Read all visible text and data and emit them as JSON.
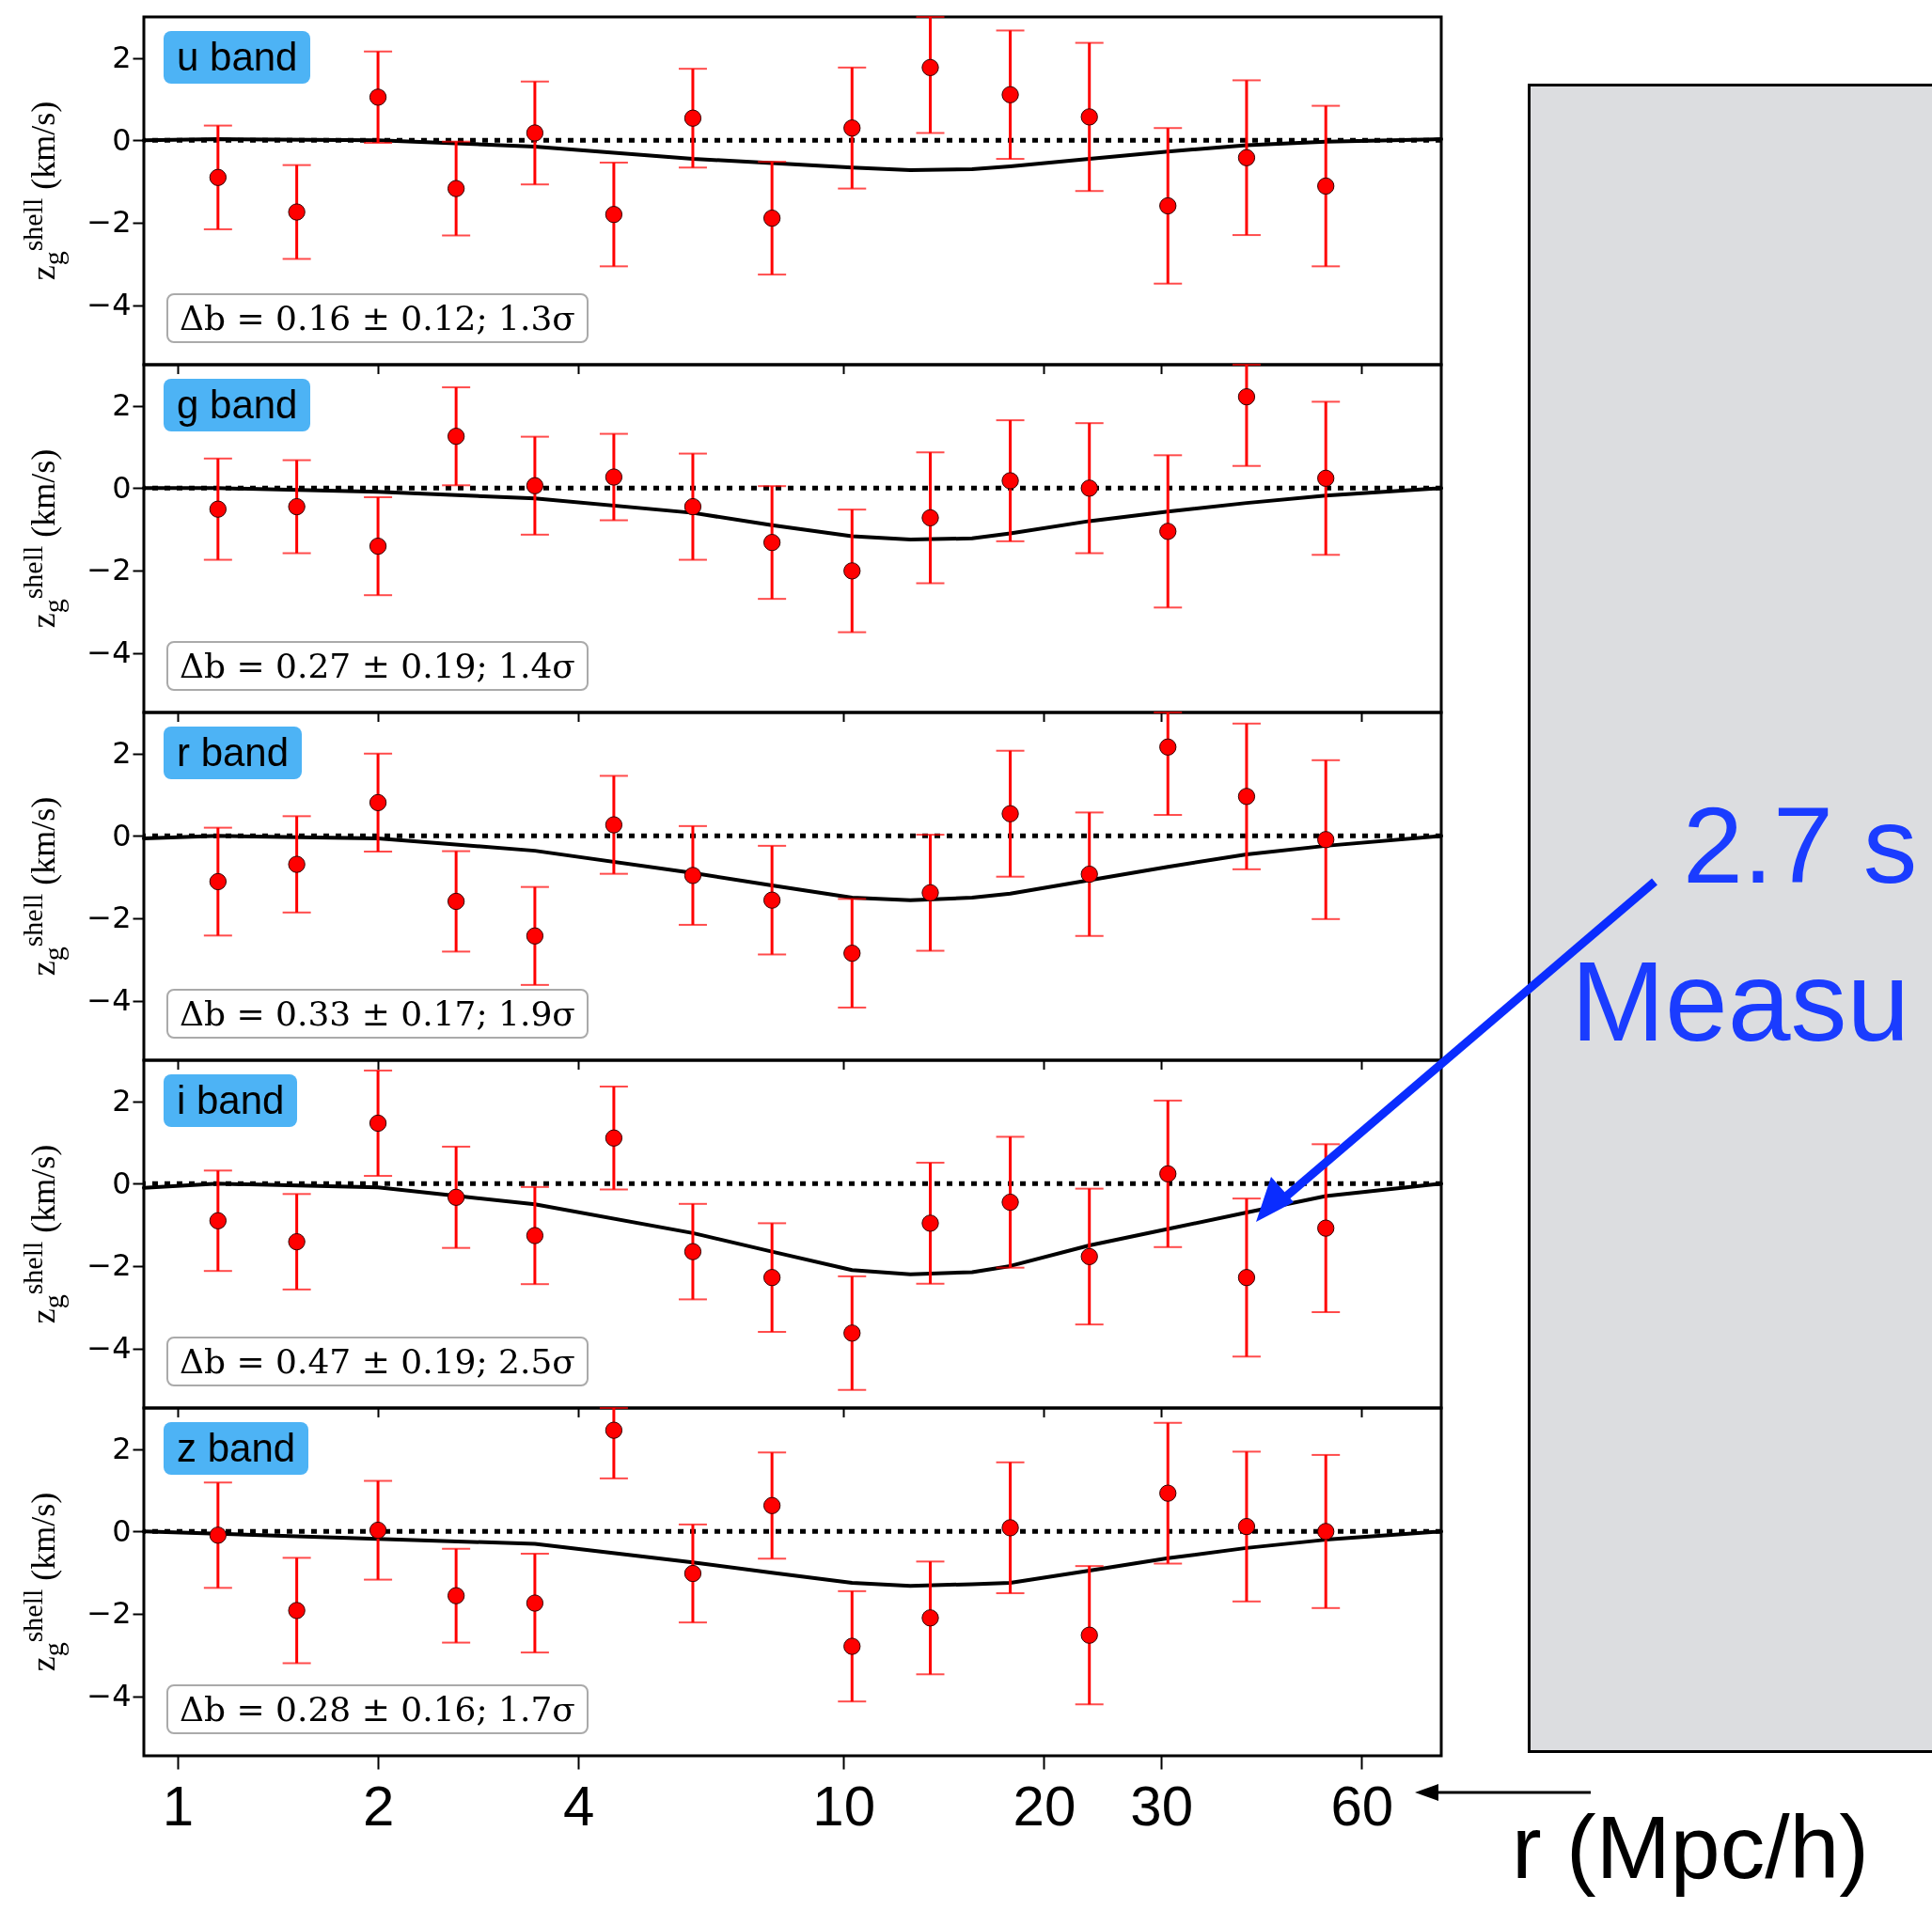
{
  "chart_data": [
    {
      "type": "scatter",
      "title": "u band",
      "ylabel": "z$_{g}$$^{shell}$ (km/s)",
      "annotations": [
        "Δb = 0.16 ± 0.12; 1.3σ"
      ],
      "log": "x",
      "xlim": [
        0.89,
        79
      ],
      "ylim": [
        -5.45,
        3
      ],
      "xticks": [
        1,
        2,
        4,
        10,
        20,
        30,
        60
      ],
      "yticks": [
        -4,
        -2,
        0,
        2
      ],
      "tick_labels": "y",
      "x": [
        1.15,
        1.51,
        2.0,
        2.62,
        3.44,
        4.52,
        5.94,
        7.81,
        10.3,
        13.5,
        17.8,
        23.4,
        30.7,
        40.3,
        53.0
      ],
      "ref_lines": [
        {
          "axis": "y",
          "value": 0,
          "color": "#000000",
          "line_style": "dotted"
        }
      ],
      "series": [
        {
          "color": "#ff0000",
          "marker": "circle",
          "values": [
            -0.9,
            -1.74,
            1.05,
            -1.17,
            0.18,
            -1.8,
            0.54,
            -1.89,
            0.3,
            1.77,
            1.11,
            0.57,
            -1.59,
            -0.42,
            -1.11
          ],
          "errors": [
            1.26,
            1.14,
            1.11,
            1.14,
            1.25,
            1.26,
            1.2,
            1.37,
            1.47,
            [
              0.18,
              3
            ],
            1.56,
            1.8,
            1.89,
            1.88,
            1.95
          ]
        },
        {
          "type": "line",
          "color": "#000000",
          "line_style": "solid",
          "x": [
            0.89,
            1.15,
            2.0,
            3.44,
            5.94,
            7.81,
            10.3,
            12.6,
            15.6,
            17.8,
            23.4,
            30.7,
            40.3,
            53.0,
            79
          ],
          "values": [
            0,
            0.03,
            0,
            -0.15,
            -0.45,
            -0.55,
            -0.66,
            -0.72,
            -0.7,
            -0.63,
            -0.45,
            -0.27,
            -0.12,
            -0.03,
            0.03
          ]
        }
      ]
    },
    {
      "type": "scatter",
      "title": "g band",
      "ylabel": "z$_{g}$$^{shell}$ (km/s)",
      "annotations": [
        "Δb = 0.27 ± 0.19; 1.4σ"
      ],
      "log": "x",
      "xlim": [
        0.89,
        79
      ],
      "ylim": [
        -5.45,
        3
      ],
      "xticks": [
        1,
        2,
        4,
        10,
        20,
        30,
        60
      ],
      "yticks": [
        -4,
        -2,
        0,
        2
      ],
      "tick_labels": "y",
      "x": [
        1.15,
        1.51,
        2.0,
        2.62,
        3.44,
        4.52,
        5.94,
        7.81,
        10.3,
        13.5,
        17.8,
        23.4,
        30.7,
        40.3,
        53.0
      ],
      "ref_lines": [
        {
          "axis": "y",
          "value": 0,
          "color": "#000000",
          "line_style": "dotted"
        }
      ],
      "series": [
        {
          "color": "#ff0000",
          "marker": "circle",
          "values": [
            -0.51,
            -0.45,
            -1.41,
            1.26,
            0.06,
            0.27,
            -0.45,
            -1.32,
            -2.01,
            -0.72,
            0.18,
            0,
            -1.05,
            2.22,
            0.24
          ],
          "errors": [
            1.23,
            1.13,
            1.19,
            1.19,
            1.19,
            1.05,
            1.29,
            1.37,
            1.49,
            1.59,
            1.47,
            1.58,
            1.85,
            [
              0.54,
              3
            ],
            1.86
          ]
        },
        {
          "type": "line",
          "color": "#000000",
          "line_style": "solid",
          "x": [
            0.89,
            1.15,
            2.0,
            3.44,
            5.94,
            7.81,
            10.3,
            12.6,
            15.6,
            17.8,
            23.4,
            30.7,
            40.3,
            53.0,
            79
          ],
          "values": [
            0,
            0,
            -0.09,
            -0.25,
            -0.6,
            -0.9,
            -1.17,
            -1.25,
            -1.22,
            -1.1,
            -0.8,
            -0.57,
            -0.36,
            -0.18,
            0
          ]
        }
      ]
    },
    {
      "type": "scatter",
      "title": "r band",
      "ylabel": "z$_{g}$$^{shell}$ (km/s)",
      "annotations": [
        "Δb = 0.33 ± 0.17; 1.9σ"
      ],
      "log": "x",
      "xlim": [
        0.89,
        79
      ],
      "ylim": [
        -5.45,
        3
      ],
      "xticks": [
        1,
        2,
        4,
        10,
        20,
        30,
        60
      ],
      "yticks": [
        -4,
        -2,
        0,
        2
      ],
      "tick_labels": "y",
      "x": [
        1.15,
        1.51,
        2.0,
        2.62,
        3.44,
        4.52,
        5.94,
        7.81,
        10.3,
        13.5,
        17.8,
        23.4,
        30.7,
        40.3,
        53.0
      ],
      "ref_lines": [
        {
          "axis": "y",
          "value": 0,
          "color": "#000000",
          "line_style": "dotted"
        }
      ],
      "series": [
        {
          "color": "#ff0000",
          "marker": "circle",
          "values": [
            -1.11,
            -0.69,
            0.81,
            -1.59,
            -2.43,
            0.27,
            -0.96,
            -1.56,
            -2.85,
            -1.38,
            0.54,
            -0.93,
            2.16,
            0.96,
            -0.09
          ],
          "errors": [
            1.31,
            1.17,
            1.19,
            1.22,
            1.19,
            1.19,
            1.2,
            1.32,
            1.32,
            1.41,
            1.53,
            1.5,
            [
              0.51,
              3
            ],
            1.77,
            1.93
          ]
        },
        {
          "type": "line",
          "color": "#000000",
          "line_style": "solid",
          "x": [
            0.89,
            1.15,
            2.0,
            3.44,
            5.94,
            7.81,
            10.3,
            12.6,
            15.6,
            17.8,
            30.7,
            40.3,
            53.0,
            79
          ],
          "values": [
            -0.06,
            0,
            -0.06,
            -0.36,
            -0.9,
            -1.2,
            -1.5,
            -1.56,
            -1.5,
            -1.4,
            -0.75,
            -0.45,
            -0.24,
            0
          ]
        }
      ]
    },
    {
      "type": "scatter",
      "title": "i band",
      "ylabel": "z$_{g}$$^{shell}$ (km/s)",
      "annotations": [
        "Δb = 0.47 ± 0.19; 2.5σ",
        "2.7 s",
        "Measu"
      ],
      "log": "x",
      "xlim": [
        0.89,
        79
      ],
      "ylim": [
        -5.45,
        3
      ],
      "xticks": [
        1,
        2,
        4,
        10,
        20,
        30,
        60
      ],
      "yticks": [
        -4,
        -2,
        0,
        2
      ],
      "tick_labels": "y",
      "x": [
        1.15,
        1.51,
        2.0,
        2.62,
        3.44,
        4.52,
        5.94,
        7.81,
        10.3,
        13.5,
        17.8,
        23.4,
        30.7,
        40.3,
        53.0
      ],
      "ref_lines": [
        {
          "axis": "y",
          "value": 0,
          "color": "#000000",
          "line_style": "dotted"
        }
      ],
      "series": [
        {
          "color": "#ff0000",
          "marker": "circle",
          "values": [
            -0.9,
            -1.41,
            1.47,
            -0.33,
            -1.26,
            1.11,
            -1.65,
            -2.28,
            -3.63,
            -0.96,
            -0.45,
            -1.77,
            0.24,
            -2.28,
            -1.08
          ],
          "errors": [
            1.22,
            1.16,
            1.28,
            1.23,
            1.18,
            1.25,
            1.16,
            1.32,
            1.38,
            1.47,
            1.59,
            1.65,
            1.78,
            1.92,
            2.04
          ]
        },
        {
          "type": "line",
          "color": "#000000",
          "line_style": "solid",
          "x": [
            0.89,
            1.15,
            2.0,
            3.44,
            5.94,
            7.81,
            10.3,
            12.6,
            15.6,
            17.8,
            23.4,
            30.7,
            40.3,
            53.0,
            79
          ],
          "values": [
            -0.1,
            0,
            -0.09,
            -0.5,
            -1.2,
            -1.65,
            -2.1,
            -2.2,
            -2.15,
            -2.0,
            -1.5,
            -1.1,
            -0.7,
            -0.3,
            0
          ]
        }
      ]
    },
    {
      "type": "scatter",
      "title": "z band",
      "ylabel": "z$_{g}$$^{shell}$ (km/s)",
      "xlabel": "r (Mpc/h)",
      "annotations": [
        "Δb = 0.28 ± 0.16; 1.7σ"
      ],
      "log": "x",
      "xlim": [
        0.89,
        79
      ],
      "ylim": [
        -5.45,
        3
      ],
      "xticks": [
        1,
        2,
        4,
        10,
        20,
        30,
        60
      ],
      "yticks": [
        -4,
        -2,
        0,
        2
      ],
      "x": [
        1.15,
        1.51,
        2.0,
        2.62,
        3.44,
        4.52,
        5.94,
        7.81,
        10.3,
        13.5,
        17.8,
        23.4,
        30.7,
        40.3,
        53.0
      ],
      "ref_lines": [
        {
          "axis": "y",
          "value": 0,
          "color": "#000000",
          "line_style": "dotted"
        }
      ],
      "series": [
        {
          "color": "#ff0000",
          "marker": "circle",
          "values": [
            -0.09,
            -1.92,
            0.03,
            -1.56,
            -1.74,
            2.46,
            -1.02,
            0.63,
            -2.79,
            -2.1,
            0.09,
            -2.52,
            0.93,
            0.12,
            0
          ],
          "errors": [
            1.28,
            1.28,
            1.2,
            1.14,
            1.2,
            [
              1.29,
              3
            ],
            1.19,
            1.29,
            1.34,
            1.37,
            1.59,
            1.68,
            1.71,
            1.82,
            1.86
          ]
        },
        {
          "type": "line",
          "color": "#000000",
          "line_style": "solid",
          "x": [
            0.89,
            3.44,
            5.94,
            7.81,
            10.3,
            12.6,
            15.6,
            17.8,
            23.4,
            30.7,
            40.3,
            53.0,
            79
          ],
          "values": [
            0,
            -0.3,
            -0.75,
            -1.0,
            -1.25,
            -1.32,
            -1.28,
            -1.25,
            -0.95,
            -0.65,
            -0.4,
            -0.2,
            0
          ]
        }
      ]
    }
  ]
}
